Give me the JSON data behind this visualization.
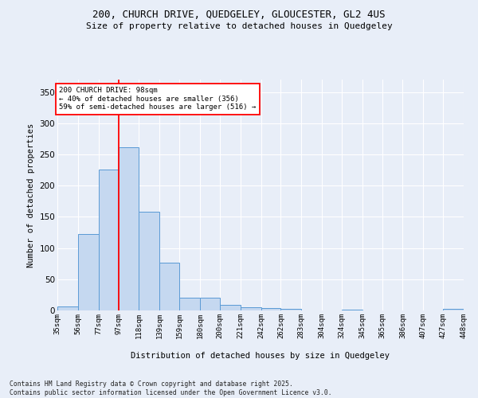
{
  "title_line1": "200, CHURCH DRIVE, QUEDGELEY, GLOUCESTER, GL2 4US",
  "title_line2": "Size of property relative to detached houses in Quedgeley",
  "xlabel": "Distribution of detached houses by size in Quedgeley",
  "ylabel": "Number of detached properties",
  "bar_color": "#c5d8f0",
  "bar_edge_color": "#5b9bd5",
  "plot_bg_color": "#e8eef8",
  "fig_bg_color": "#e8eef8",
  "grid_color": "#ffffff",
  "annotation_text": "200 CHURCH DRIVE: 98sqm\n← 40% of detached houses are smaller (356)\n59% of semi-detached houses are larger (516) →",
  "redline_x": 97,
  "bin_edges": [
    35,
    56,
    77,
    97,
    118,
    139,
    159,
    180,
    200,
    221,
    242,
    262,
    283,
    304,
    324,
    345,
    365,
    386,
    407,
    427,
    448
  ],
  "bin_labels": [
    "35sqm",
    "56sqm",
    "77sqm",
    "97sqm",
    "118sqm",
    "139sqm",
    "159sqm",
    "180sqm",
    "200sqm",
    "221sqm",
    "242sqm",
    "262sqm",
    "283sqm",
    "304sqm",
    "324sqm",
    "345sqm",
    "365sqm",
    "386sqm",
    "407sqm",
    "427sqm",
    "448sqm"
  ],
  "bar_heights": [
    7,
    122,
    226,
    262,
    158,
    77,
    21,
    21,
    9,
    5,
    4,
    2,
    0,
    0,
    1,
    0,
    0,
    0,
    0,
    3
  ],
  "ylim": [
    0,
    370
  ],
  "yticks": [
    0,
    50,
    100,
    150,
    200,
    250,
    300,
    350
  ],
  "footnote_line1": "Contains HM Land Registry data © Crown copyright and database right 2025.",
  "footnote_line2": "Contains public sector information licensed under the Open Government Licence v3.0."
}
